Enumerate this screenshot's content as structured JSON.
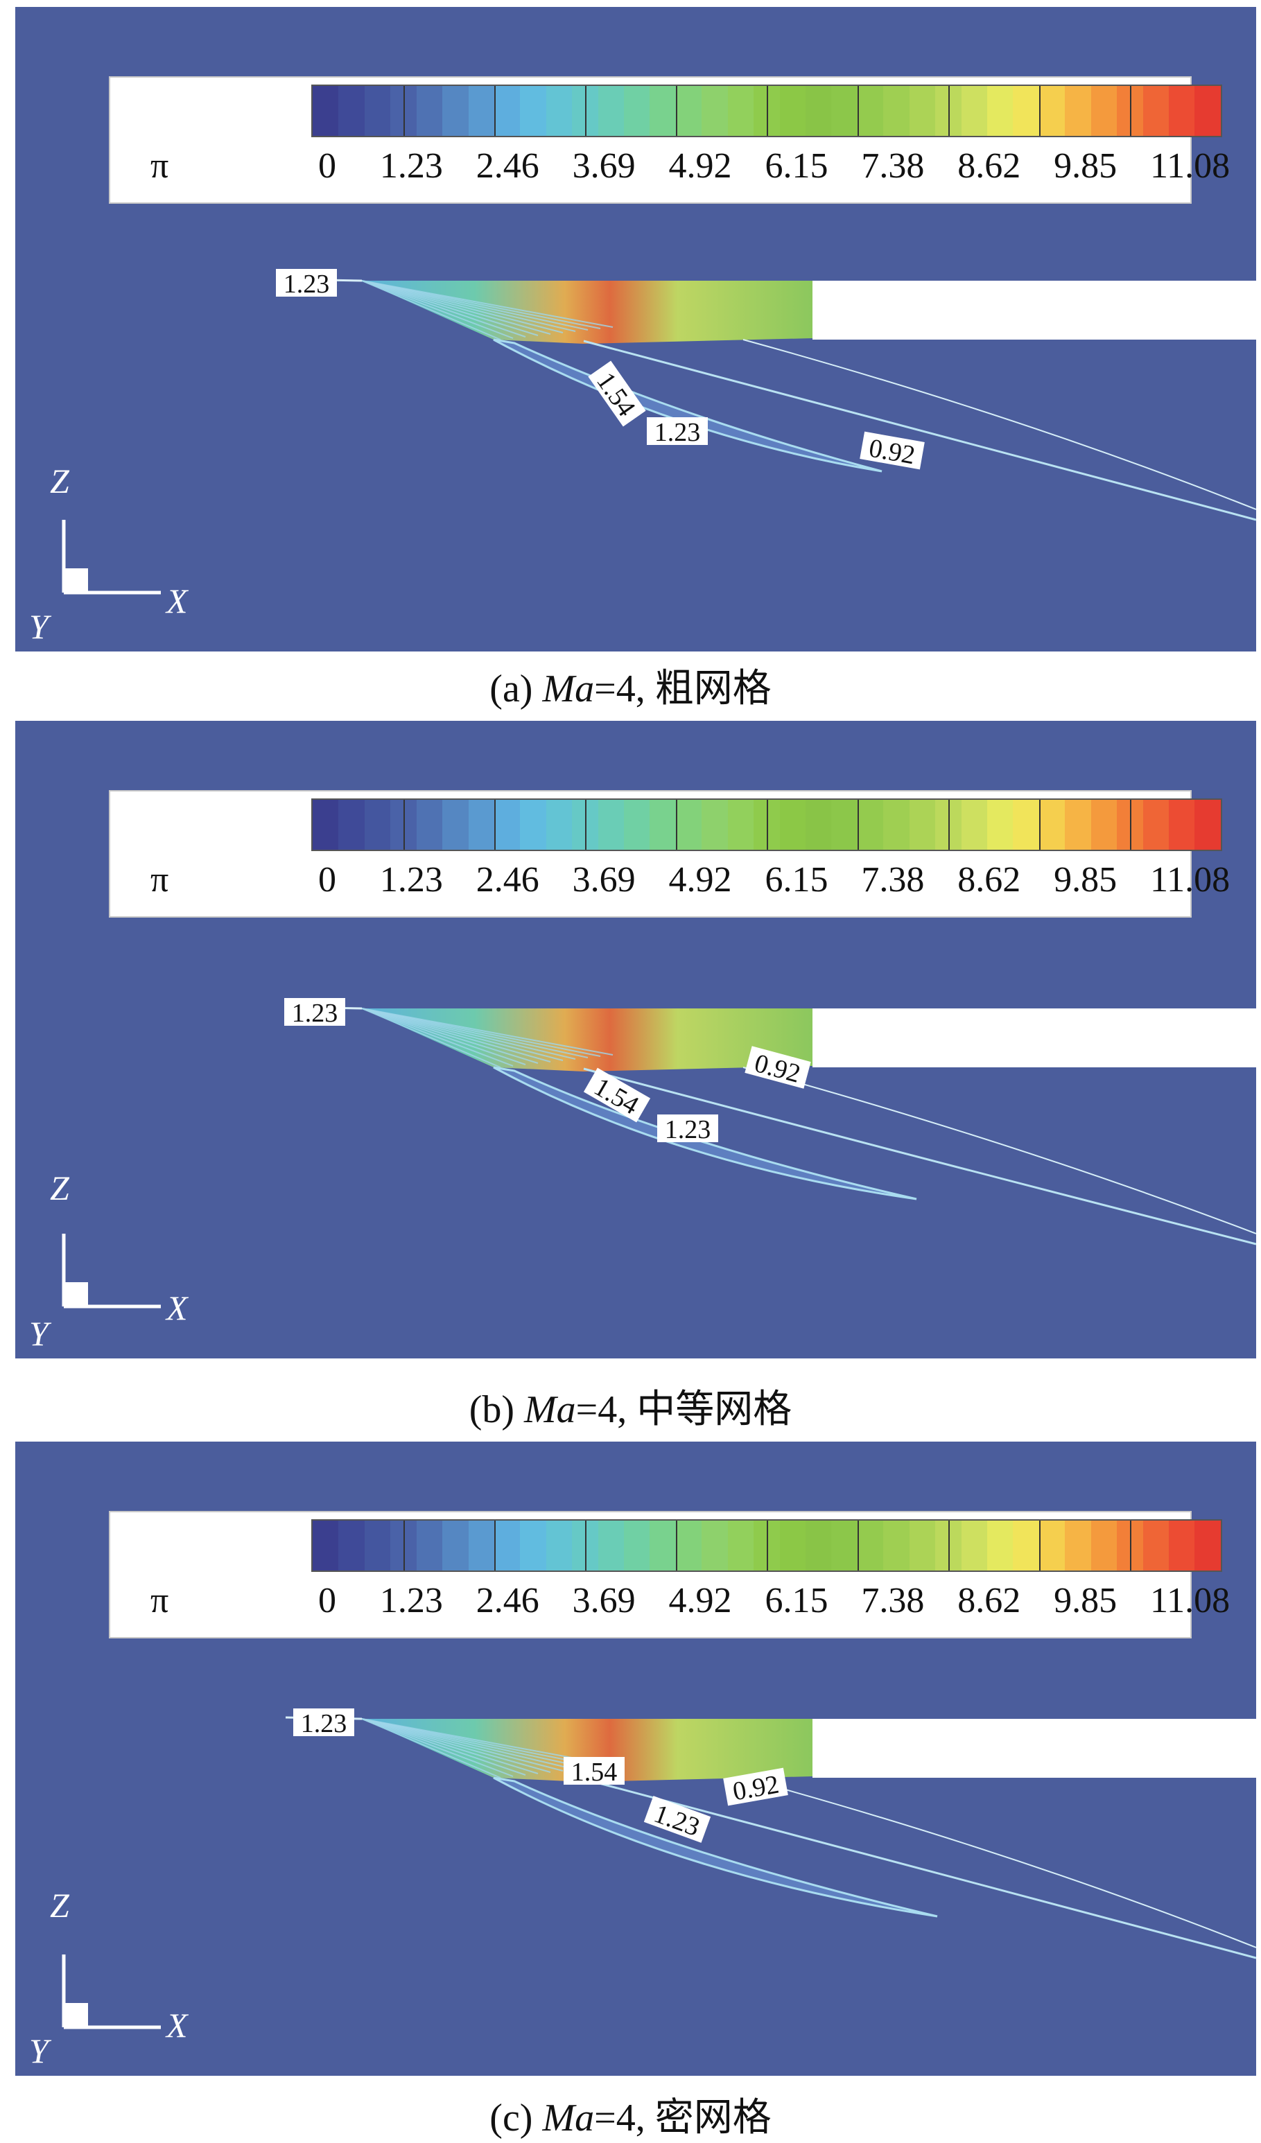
{
  "legend": {
    "symbol": "π",
    "ticks": [
      "0",
      "1.23",
      "2.46",
      "3.69",
      "4.92",
      "6.15",
      "7.38",
      "8.62",
      "9.85",
      "11.08"
    ]
  },
  "colormap": [
    "#3b3f8f",
    "#3f4a98",
    "#44569f",
    "#4a62a8",
    "#4f72b3",
    "#5587c2",
    "#5a9ad0",
    "#5eaede",
    "#61bce0",
    "#63c4d4",
    "#66c9c6",
    "#6acdb6",
    "#70d0a4",
    "#79d28e",
    "#83d27a",
    "#8ed16c",
    "#92d05c",
    "#8fcb4c",
    "#8cc846",
    "#89c447",
    "#8cc74a",
    "#94cb4e",
    "#9fcf52",
    "#acd356",
    "#bcd95c",
    "#cee060",
    "#e4e95f",
    "#f1e45a",
    "#f5cf4e",
    "#f6b445",
    "#f49a3d",
    "#f27f38",
    "#ef6536",
    "#ec4c33",
    "#e63b30"
  ],
  "panels": [
    {
      "caption_prefix": "(a) ",
      "caption_ma": "Ma",
      "caption_suffix": "=4, 粗网格",
      "labels": [
        "1.23",
        "1.54",
        "1.23",
        "0.92"
      ]
    },
    {
      "caption_prefix": "(b) ",
      "caption_ma": "Ma",
      "caption_suffix": "=4, 中等网格",
      "labels": [
        "1.23",
        "0.92",
        "1.54",
        "1.23"
      ]
    },
    {
      "caption_prefix": "(c) ",
      "caption_ma": "Ma",
      "caption_suffix": "=4, 密网格",
      "labels": [
        "1.23",
        "1.54",
        "0.92",
        "1.23"
      ]
    }
  ],
  "axes": {
    "z": "Z",
    "x": "X",
    "y": "Y"
  },
  "colors": {
    "background": "#4b5d9c",
    "wall": "#ffffff"
  }
}
